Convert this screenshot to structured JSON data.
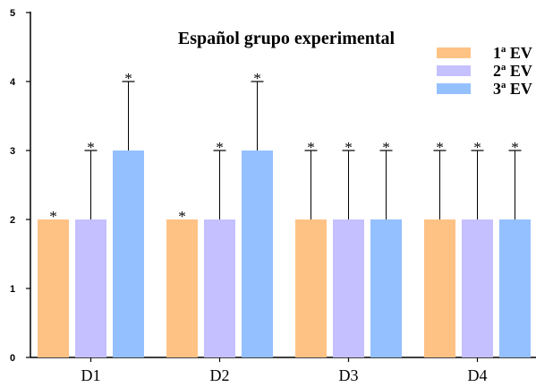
{
  "chart_data": {
    "type": "bar",
    "title": "Español grupo experimental",
    "xlabel": "",
    "ylabel": "",
    "ylim": [
      0,
      5
    ],
    "yticks": [
      0,
      1,
      2,
      3,
      4,
      5
    ],
    "categories": [
      "D1",
      "D2",
      "D3",
      "D4"
    ],
    "series": [
      {
        "name": "1ª EV",
        "color": "#ffc285",
        "values": [
          2,
          2,
          2,
          2
        ],
        "error_upper": [
          null,
          null,
          3,
          3
        ],
        "marker": [
          "*",
          "*",
          "*",
          "*"
        ]
      },
      {
        "name": "2ª EV",
        "color": "#c5c0ff",
        "values": [
          2,
          2,
          2,
          2
        ],
        "error_upper": [
          3,
          3,
          3,
          3
        ],
        "marker": [
          "*",
          "*",
          "*",
          "*"
        ]
      },
      {
        "name": "3ª EV",
        "color": "#94c0ff",
        "values": [
          3,
          3,
          2,
          2
        ],
        "error_upper": [
          4,
          4,
          3,
          3
        ],
        "marker": [
          "*",
          "*",
          "*",
          "*"
        ]
      }
    ],
    "legend_position": "top-right",
    "grid": false
  }
}
